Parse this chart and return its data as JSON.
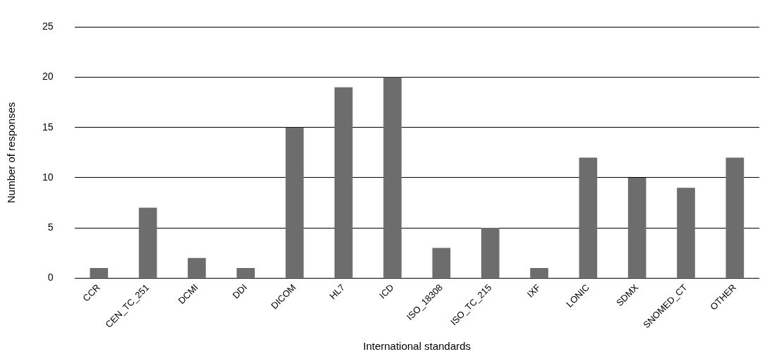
{
  "chart_data": {
    "type": "bar",
    "xlabel": "International standards",
    "ylabel": "Number of responses",
    "categories": [
      "CCR",
      "CEN_TC_251",
      "DCMI",
      "DDI",
      "DICOM",
      "HL7",
      "ICD",
      "ISO_18308",
      "ISO_TC_215",
      "IXF",
      "LONIC",
      "SDMX",
      "SNOMED_CT",
      "OTHER"
    ],
    "values": [
      1,
      7,
      2,
      1,
      15,
      19,
      20,
      3,
      5,
      1,
      12,
      10,
      9,
      12
    ],
    "color": "#6d6d6d",
    "ylim": [
      0,
      25
    ],
    "yticks": [
      0,
      5,
      10,
      15,
      20,
      25
    ],
    "grid": "y",
    "legend": false
  }
}
